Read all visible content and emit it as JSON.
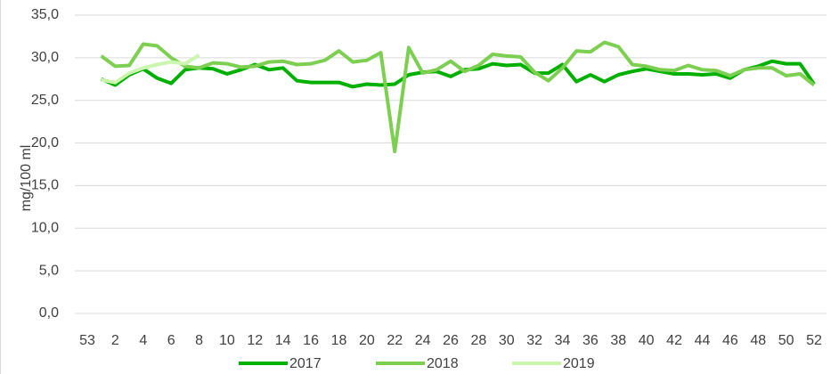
{
  "chart_data": {
    "type": "line",
    "y_label": "mg/100 ml",
    "categories": [
      "53",
      null,
      "2",
      null,
      "4",
      null,
      "6",
      null,
      "8",
      null,
      "10",
      null,
      "12",
      null,
      "14",
      null,
      "16",
      null,
      "18",
      null,
      "20",
      null,
      "22",
      null,
      "24",
      null,
      "26",
      null,
      "28",
      null,
      "30",
      null,
      "32",
      null,
      "34",
      null,
      "36",
      null,
      "38",
      null,
      "40",
      null,
      "42",
      null,
      "44",
      null,
      "46",
      null,
      "48",
      null,
      "50",
      null,
      "52"
    ],
    "series": [
      {
        "name": "2017",
        "color": "#00b000",
        "values": [
          null,
          27.5,
          26.8,
          28.0,
          28.7,
          27.6,
          27.0,
          28.6,
          28.8,
          28.7,
          28.1,
          28.6,
          29.2,
          28.6,
          28.8,
          27.3,
          27.1,
          27.1,
          27.1,
          26.6,
          26.9,
          26.8,
          26.9,
          28.0,
          28.3,
          28.4,
          27.8,
          28.6,
          28.7,
          29.3,
          29.1,
          29.2,
          28.2,
          28.2,
          29.2,
          27.2,
          28.0,
          27.2,
          28.0,
          28.4,
          28.7,
          28.4,
          28.1,
          28.1,
          28.0,
          28.1,
          27.6,
          28.6,
          29.0,
          29.6,
          29.3,
          29.3,
          26.9
        ]
      },
      {
        "name": "2018",
        "color": "#7ccf50",
        "values": [
          null,
          30.2,
          29.0,
          29.1,
          31.6,
          31.4,
          30.0,
          29.0,
          28.8,
          29.4,
          29.3,
          28.9,
          29.0,
          29.5,
          29.6,
          29.2,
          29.3,
          29.7,
          30.8,
          29.5,
          29.7,
          30.6,
          19.0,
          31.2,
          28.2,
          28.6,
          29.6,
          28.4,
          29.1,
          30.4,
          30.2,
          30.1,
          28.3,
          27.3,
          28.8,
          30.8,
          30.7,
          31.8,
          31.3,
          29.2,
          29.0,
          28.6,
          28.5,
          29.1,
          28.6,
          28.5,
          27.9,
          28.6,
          28.8,
          28.8,
          27.9,
          28.1,
          26.8
        ]
      },
      {
        "name": "2019",
        "color": "#ccf5b0",
        "values": [
          null,
          27.4,
          27.1,
          28.2,
          28.8,
          29.2,
          29.5,
          29.3,
          30.3,
          null,
          null,
          null,
          null,
          null,
          null,
          null,
          null,
          null,
          null,
          null,
          null,
          null,
          null,
          null,
          null,
          null,
          null,
          null,
          null,
          null,
          null,
          null,
          null,
          null,
          null,
          null,
          null,
          null,
          null,
          null,
          null,
          null,
          null,
          null,
          null,
          null,
          null,
          null,
          null,
          null,
          null,
          null,
          null
        ]
      }
    ],
    "ylim": [
      0,
      35
    ],
    "yticks": [
      {
        "value": 0,
        "label": "0,0"
      },
      {
        "value": 5,
        "label": "5,0"
      },
      {
        "value": 10,
        "label": "10,0"
      },
      {
        "value": 15,
        "label": "15,0"
      },
      {
        "value": 20,
        "label": "20,0"
      },
      {
        "value": 25,
        "label": "25,0"
      },
      {
        "value": 30,
        "label": "30,0"
      },
      {
        "value": 35,
        "label": "35,0"
      }
    ],
    "grid": true,
    "legend": "bottom"
  }
}
